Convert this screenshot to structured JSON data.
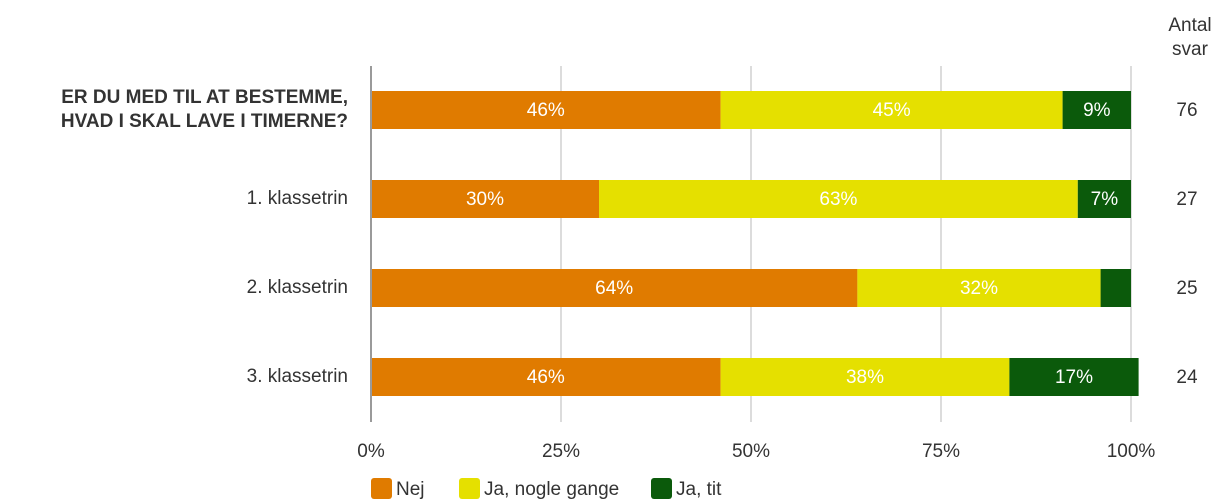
{
  "chart_data": {
    "type": "bar",
    "orientation": "horizontal",
    "stacked": true,
    "categories": [
      "ER DU MED TIL AT BESTEMME,\nHVAD I SKAL LAVE I TIMERNE?",
      "1. klassetrin",
      "2. klassetrin",
      "3. klassetrin"
    ],
    "series": [
      {
        "name": "Nej",
        "color": "#e07b00",
        "values": [
          46,
          30,
          64,
          46
        ],
        "labels": [
          "46%",
          "30%",
          "64%",
          "46%"
        ]
      },
      {
        "name": "Ja, nogle gange",
        "color": "#e5e000",
        "values": [
          45,
          63,
          32,
          38
        ],
        "labels": [
          "45%",
          "63%",
          "32%",
          "38%"
        ]
      },
      {
        "name": "Ja, tit",
        "color": "#0b5a0b",
        "values": [
          9,
          7,
          4,
          17
        ],
        "labels": [
          "9%",
          "7%",
          "",
          "17%"
        ]
      }
    ],
    "xlim": [
      0,
      100
    ],
    "xticks": [
      "0%",
      "25%",
      "50%",
      "75%",
      "100%"
    ],
    "grid": true,
    "legend_position": "bottom",
    "right_column": {
      "header": [
        "Antal",
        "svar"
      ],
      "values": [
        "76",
        "27",
        "25",
        "24"
      ]
    }
  }
}
